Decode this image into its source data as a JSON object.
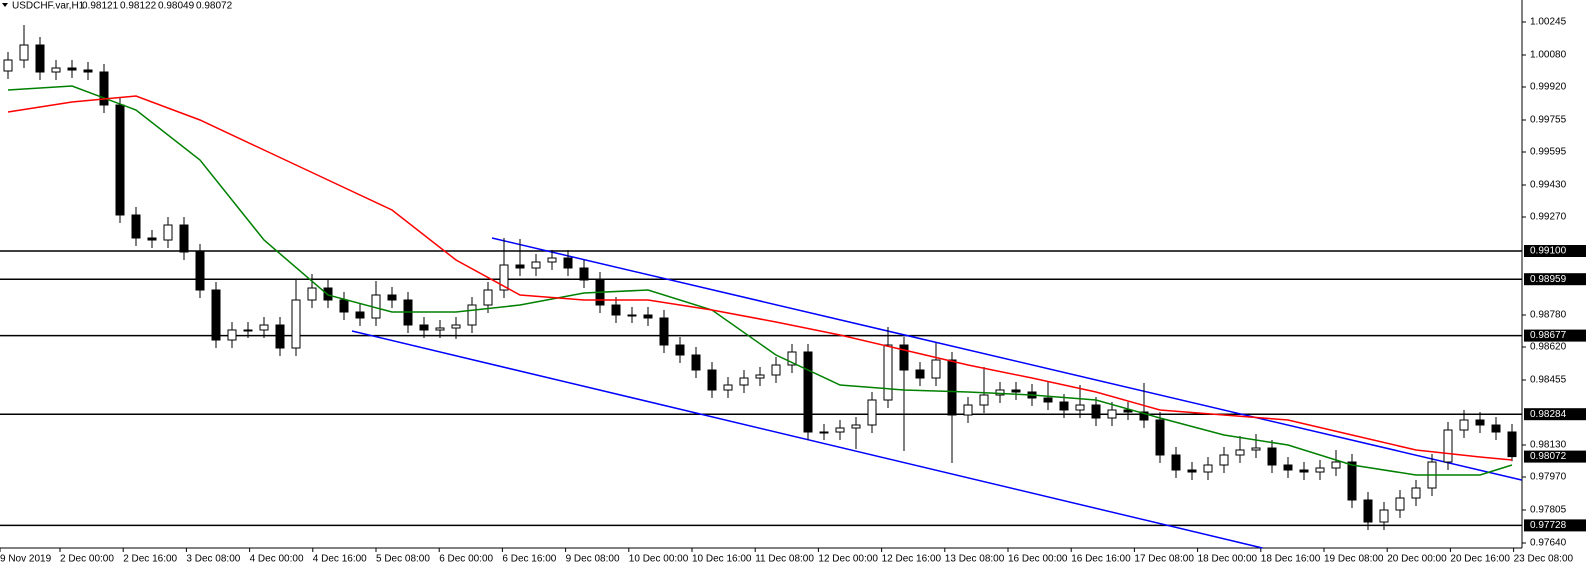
{
  "chart_data": {
    "type": "candlestick",
    "symbol": "USDCHF.var,H1",
    "quote": [
      0.98121,
      0.98122,
      0.98049,
      0.98072
    ],
    "x_labels": [
      "9 Nov 2019",
      "2 Dec 00:00",
      "2 Dec 16:00",
      "3 Dec 08:00",
      "4 Dec 00:00",
      "4 Dec 16:00",
      "5 Dec 08:00",
      "6 Dec 00:00",
      "6 Dec 16:00",
      "9 Dec 08:00",
      "10 Dec 00:00",
      "10 Dec 16:00",
      "11 Dec 08:00",
      "12 Dec 00:00",
      "12 Dec 16:00",
      "13 Dec 08:00",
      "16 Dec 00:00",
      "16 Dec 16:00",
      "17 Dec 08:00",
      "18 Dec 00:00",
      "18 Dec 16:00",
      "19 Dec 08:00",
      "20 Dec 00:00",
      "20 Dec 16:00",
      "23 Dec 08:00"
    ],
    "open": [
      1.0,
      1.00055,
      1.0013,
      0.99995,
      1.00015,
      1.00005,
      0.99995,
      0.9983,
      0.9928,
      0.99165,
      0.99155,
      0.9923,
      0.99095,
      0.98905,
      0.98655,
      0.98705,
      0.98705,
      0.9873,
      0.98615,
      0.98855,
      0.98915,
      0.98855,
      0.98795,
      0.98765,
      0.9888,
      0.98855,
      0.9873,
      0.98705,
      0.98715,
      0.9873,
      0.9883,
      0.98905,
      0.9903,
      0.99015,
      0.99045,
      0.99065,
      0.99015,
      0.98955,
      0.9883,
      0.9878,
      0.9878,
      0.98765,
      0.9863,
      0.9858,
      0.98505,
      0.98405,
      0.9843,
      0.98465,
      0.9848,
      0.9853,
      0.98595,
      0.98195,
      0.98195,
      0.98215,
      0.9823,
      0.98355,
      0.9863,
      0.98505,
      0.98465,
      0.98555,
      0.9828,
      0.9833,
      0.9838,
      0.98405,
      0.98395,
      0.98365,
      0.98345,
      0.98305,
      0.9833,
      0.98265,
      0.98305,
      0.98295,
      0.98255,
      0.9808,
      0.98005,
      0.97995,
      0.9803,
      0.9808,
      0.98105,
      0.98115,
      0.9803,
      0.98005,
      0.97995,
      0.98015,
      0.98045,
      0.97855,
      0.97745,
      0.97805,
      0.97865,
      0.97915,
      0.98045,
      0.98205,
      0.98255,
      0.9823,
      0.98195
    ],
    "high": [
      1.00095,
      1.0023,
      1.0017,
      1.00055,
      1.00055,
      1.00045,
      1.00035,
      0.9987,
      0.9932,
      0.99205,
      0.9927,
      0.9927,
      0.99135,
      0.98945,
      0.98745,
      0.98745,
      0.9877,
      0.9877,
      0.98955,
      0.98985,
      0.98955,
      0.98895,
      0.98835,
      0.9895,
      0.9892,
      0.98895,
      0.9877,
      0.98755,
      0.9877,
      0.9887,
      0.98945,
      0.99165,
      0.9916,
      0.99085,
      0.99105,
      0.99105,
      0.99055,
      0.98995,
      0.9887,
      0.9882,
      0.9882,
      0.98805,
      0.9867,
      0.9862,
      0.98545,
      0.9847,
      0.98505,
      0.9852,
      0.9857,
      0.98635,
      0.98635,
      0.98235,
      0.98255,
      0.9827,
      0.98395,
      0.9872,
      0.9867,
      0.98545,
      0.9864,
      0.98595,
      0.9837,
      0.9852,
      0.98445,
      0.98445,
      0.98435,
      0.9845,
      0.98385,
      0.9843,
      0.9837,
      0.98345,
      0.98345,
      0.9844,
      0.98295,
      0.9812,
      0.98045,
      0.9807,
      0.9812,
      0.98175,
      0.98185,
      0.98155,
      0.9807,
      0.98045,
      0.98055,
      0.98105,
      0.98085,
      0.97895,
      0.97845,
      0.97905,
      0.97955,
      0.98085,
      0.98245,
      0.98305,
      0.98295,
      0.9827,
      0.98235
    ],
    "low": [
      0.9996,
      1.00015,
      0.99955,
      0.99955,
      0.99965,
      0.99955,
      0.9979,
      0.9924,
      0.99125,
      0.99115,
      0.99115,
      0.99055,
      0.98865,
      0.98615,
      0.98615,
      0.98665,
      0.98665,
      0.98575,
      0.98575,
      0.98815,
      0.98815,
      0.98755,
      0.98725,
      0.98725,
      0.98815,
      0.9869,
      0.98665,
      0.98665,
      0.9866,
      0.9869,
      0.9879,
      0.98865,
      0.98975,
      0.98975,
      0.99005,
      0.98975,
      0.98915,
      0.9879,
      0.9874,
      0.9874,
      0.98725,
      0.9859,
      0.9854,
      0.98465,
      0.98365,
      0.98365,
      0.9839,
      0.98425,
      0.9844,
      0.9849,
      0.98155,
      0.98155,
      0.98155,
      0.9811,
      0.9819,
      0.98315,
      0.981,
      0.98425,
      0.98425,
      0.9804,
      0.9824,
      0.9829,
      0.9834,
      0.98355,
      0.98325,
      0.98305,
      0.98265,
      0.98265,
      0.98225,
      0.98225,
      0.98255,
      0.98215,
      0.9804,
      0.97965,
      0.97955,
      0.97955,
      0.9799,
      0.9804,
      0.98065,
      0.9799,
      0.97965,
      0.97955,
      0.97955,
      0.97975,
      0.97815,
      0.97705,
      0.97705,
      0.97765,
      0.97825,
      0.97875,
      0.98005,
      0.98165,
      0.9819,
      0.98155,
      0.98049
    ],
    "close": [
      1.00055,
      1.0013,
      0.99995,
      1.00015,
      1.00005,
      0.99995,
      0.9983,
      0.9928,
      0.99165,
      0.99155,
      0.9923,
      0.99095,
      0.98905,
      0.98655,
      0.98705,
      0.98705,
      0.9873,
      0.98615,
      0.98855,
      0.98915,
      0.98855,
      0.98795,
      0.98765,
      0.9888,
      0.98855,
      0.9873,
      0.98705,
      0.98715,
      0.9873,
      0.9883,
      0.98905,
      0.9903,
      0.99015,
      0.99045,
      0.99065,
      0.99015,
      0.98955,
      0.9883,
      0.9878,
      0.9878,
      0.98765,
      0.9863,
      0.9858,
      0.98505,
      0.98405,
      0.9843,
      0.98465,
      0.9848,
      0.9853,
      0.98595,
      0.98195,
      0.98195,
      0.98215,
      0.9823,
      0.98355,
      0.9863,
      0.98505,
      0.98465,
      0.98555,
      0.9828,
      0.9833,
      0.9838,
      0.98405,
      0.98395,
      0.98365,
      0.98345,
      0.98305,
      0.9833,
      0.98265,
      0.98305,
      0.98295,
      0.98255,
      0.9808,
      0.98005,
      0.97995,
      0.9803,
      0.9808,
      0.98105,
      0.98115,
      0.9803,
      0.98005,
      0.97995,
      0.98015,
      0.98045,
      0.97855,
      0.97745,
      0.97805,
      0.97865,
      0.97915,
      0.98045,
      0.98205,
      0.98255,
      0.9823,
      0.98195,
      0.98072
    ],
    "up_color": "#ffffff",
    "down_color": "#000000",
    "lines": [
      {
        "color": "#008000",
        "x": [
          0,
          4,
          8,
          12,
          16,
          20,
          24,
          28,
          32,
          36,
          40,
          44,
          48,
          52,
          56,
          60,
          64,
          68,
          72,
          76,
          80,
          84,
          88,
          92,
          94
        ],
        "values": [
          0.99905,
          0.99925,
          0.99805,
          0.99555,
          0.99155,
          0.9888,
          0.98795,
          0.98795,
          0.9883,
          0.9889,
          0.98905,
          0.98805,
          0.9858,
          0.9843,
          0.98405,
          0.98395,
          0.9838,
          0.98355,
          0.98265,
          0.9818,
          0.9813,
          0.9803,
          0.9798,
          0.9798,
          0.9803
        ]
      },
      {
        "color": "#ff0000",
        "x": [
          0,
          4,
          8,
          12,
          16,
          20,
          24,
          28,
          32,
          36,
          40,
          44,
          48,
          52,
          56,
          60,
          64,
          68,
          72,
          76,
          80,
          84,
          88,
          92,
          94
        ],
        "values": [
          0.99795,
          0.99845,
          0.99875,
          0.99755,
          0.99605,
          0.99455,
          0.99305,
          0.99055,
          0.9888,
          0.98855,
          0.98855,
          0.98805,
          0.98745,
          0.9868,
          0.98605,
          0.9853,
          0.98465,
          0.98395,
          0.98305,
          0.9828,
          0.98255,
          0.9818,
          0.98105,
          0.9807,
          0.98055
        ]
      }
    ],
    "trendlines": [
      {
        "color": "#0000ff",
        "x": [
          30.25,
          94.6
        ],
        "values": [
          0.99165,
          0.97955
        ]
      },
      {
        "color": "#0000ff",
        "x": [
          21.5,
          78.4
        ],
        "values": [
          0.987,
          0.97615
        ]
      }
    ],
    "levels": [
      {
        "value": 0.991,
        "label": "0.99100"
      },
      0.98959,
      0.98677,
      0.98284,
      0.97728
    ],
    "last": 0.98072,
    "ylim": [
      0.97615,
      1.00355
    ],
    "yticks": [
      1.00245,
      {
        "value": 1.0008,
        "label": "1.00080"
      },
      {
        "value": 0.9992,
        "label": "0.99920"
      },
      0.99755,
      0.99595,
      {
        "value": 0.9943,
        "label": "0.99430"
      },
      {
        "value": 0.9927,
        "label": "0.99270"
      },
      {
        "value": 0.9878,
        "label": "0.98780"
      },
      {
        "value": 0.9862,
        "label": "0.98620"
      },
      0.98455,
      {
        "value": 0.9813,
        "label": "0.98130"
      },
      {
        "value": 0.9797,
        "label": "0.97970"
      },
      0.97805,
      {
        "value": 0.9764,
        "label": "0.97640"
      }
    ]
  }
}
